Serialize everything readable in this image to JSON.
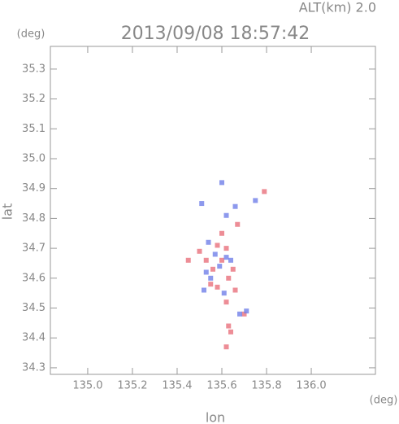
{
  "chart_data": {
    "type": "scatter",
    "title": "2013/09/08 18:57:42",
    "subtitle": "ALT(km) 2.0",
    "y_unit": "(deg)",
    "x_unit": "(deg)",
    "xlabel": "lon",
    "ylabel": "lat",
    "xlim": [
      134.833,
      136.287
    ],
    "ylim": [
      34.278,
      35.376
    ],
    "xticks": [
      {
        "value": 135,
        "label": "135.0"
      },
      135.2,
      135.4,
      135.6,
      135.8,
      {
        "value": 136,
        "label": "136.0"
      }
    ],
    "yticks": [
      34.3,
      34.4,
      34.5,
      34.6,
      34.7,
      34.8,
      34.9,
      {
        "value": 35,
        "label": "35.0"
      },
      35.1,
      35.2,
      35.3
    ],
    "series": [
      {
        "color": "#e8707c",
        "x": [
          135.53,
          135.56,
          135.6,
          135.62,
          135.55,
          135.58,
          135.63,
          135.66,
          135.62,
          135.63,
          135.64,
          135.6,
          135.67,
          135.79,
          135.7,
          135.5,
          135.58,
          135.45,
          135.65,
          135.62
        ],
        "values": [
          34.66,
          34.63,
          34.66,
          34.7,
          34.58,
          34.57,
          34.6,
          34.56,
          34.52,
          34.44,
          34.42,
          34.75,
          34.78,
          34.89,
          34.48,
          34.69,
          34.71,
          34.66,
          34.63,
          34.37
        ]
      },
      {
        "color": "#7080e8",
        "x": [
          135.51,
          135.55,
          135.59,
          135.62,
          135.57,
          135.68,
          135.71,
          135.66,
          135.62,
          135.75,
          135.52,
          135.61,
          135.64,
          135.54,
          135.6,
          135.53
        ],
        "values": [
          34.85,
          34.6,
          34.64,
          34.67,
          34.68,
          34.48,
          34.49,
          34.84,
          34.81,
          34.86,
          34.56,
          34.55,
          34.66,
          34.72,
          34.92,
          34.62
        ]
      }
    ]
  }
}
